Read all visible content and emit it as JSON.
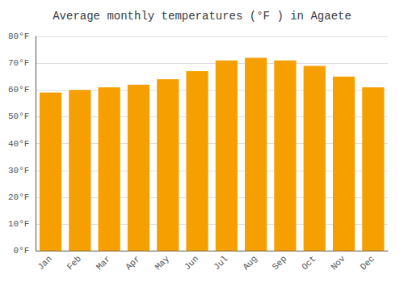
{
  "chart_data": {
    "type": "bar",
    "title": "Average monthly temperatures (°F ) in Agaete",
    "categories": [
      "Jan",
      "Feb",
      "Mar",
      "Apr",
      "May",
      "Jun",
      "Jul",
      "Aug",
      "Sep",
      "Oct",
      "Nov",
      "Dec"
    ],
    "values": [
      59,
      60,
      61,
      62,
      64,
      67,
      71,
      72,
      71,
      69,
      65,
      61
    ],
    "color": "#F5A000",
    "ylim": [
      0,
      80
    ],
    "yticks": [
      {
        "value": 0,
        "label": "0°F"
      },
      {
        "value": 10,
        "label": "10°F"
      },
      {
        "value": 20,
        "label": "20°F"
      },
      {
        "value": 30,
        "label": "30°F"
      },
      {
        "value": 40,
        "label": "40°F"
      },
      {
        "value": 50,
        "label": "50°F"
      },
      {
        "value": 60,
        "label": "60°F"
      },
      {
        "value": 70,
        "label": "70°F"
      },
      {
        "value": 80,
        "label": "80°F"
      }
    ],
    "grid": true
  }
}
